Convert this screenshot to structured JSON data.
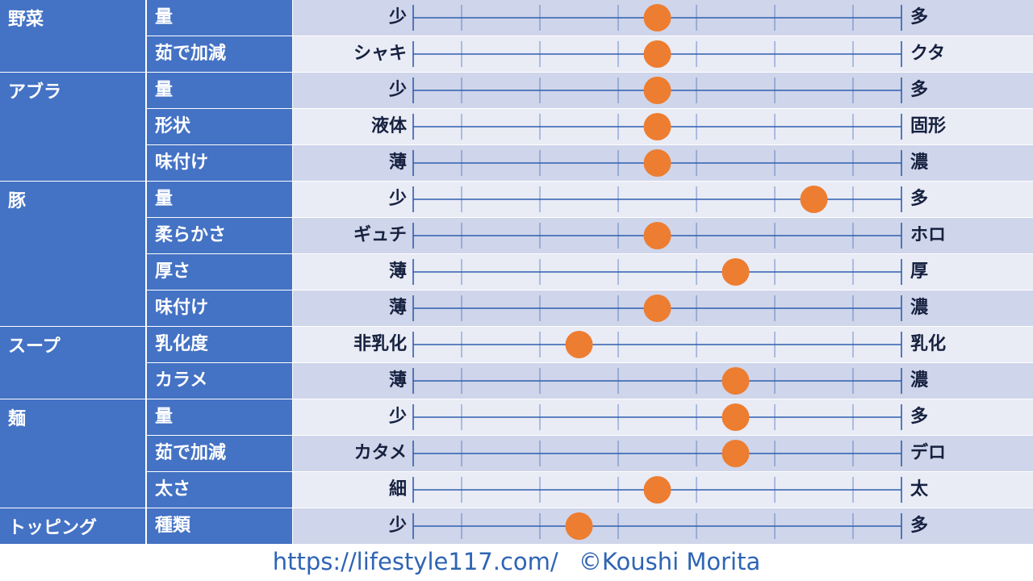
{
  "chart_data": {
    "type": "scatter",
    "scale_positions": 6,
    "categories": [
      {
        "name": "野菜",
        "items": [
          {
            "label": "量",
            "left": "少",
            "right": "多",
            "value": 2.5
          },
          {
            "label": "茹で加減",
            "left": "シャキ",
            "right": "クタ",
            "value": 2.5
          }
        ]
      },
      {
        "name": "アブラ",
        "items": [
          {
            "label": "量",
            "left": "少",
            "right": "多",
            "value": 2.5
          },
          {
            "label": "形状",
            "left": "液体",
            "right": "固形",
            "value": 2.5
          },
          {
            "label": "味付け",
            "left": "薄",
            "right": "濃",
            "value": 2.5
          }
        ]
      },
      {
        "name": "豚",
        "items": [
          {
            "label": "量",
            "left": "少",
            "right": "多",
            "value": 4.5
          },
          {
            "label": "柔らかさ",
            "left": "ギュチ",
            "right": "ホロ",
            "value": 2.5
          },
          {
            "label": "厚さ",
            "left": "薄",
            "right": "厚",
            "value": 3.5
          },
          {
            "label": "味付け",
            "left": "薄",
            "right": "濃",
            "value": 2.5
          }
        ]
      },
      {
        "name": "スープ",
        "items": [
          {
            "label": "乳化度",
            "left": "非乳化",
            "right": "乳化",
            "value": 1.5
          },
          {
            "label": "カラメ",
            "left": "薄",
            "right": "濃",
            "value": 3.5
          }
        ]
      },
      {
        "name": "麺",
        "items": [
          {
            "label": "量",
            "left": "少",
            "right": "多",
            "value": 3.5
          },
          {
            "label": "茹で加減",
            "left": "カタメ",
            "right": "デロ",
            "value": 3.5
          },
          {
            "label": "太さ",
            "left": "細",
            "right": "太",
            "value": 2.5
          }
        ]
      },
      {
        "name": "トッピング",
        "items": [
          {
            "label": "種類",
            "left": "少",
            "right": "多",
            "value": 1.5
          }
        ]
      }
    ]
  },
  "footer": {
    "url": "https://lifestyle117.com/",
    "copyright": "©Koushi Morita"
  },
  "colors": {
    "header_bg": "#4472c4",
    "row_odd": "#cfd5ea",
    "row_even": "#e9ebf5",
    "scale_line": "#2f5fb0",
    "marker": "#ed7d31",
    "footer_text": "#2e64b4"
  }
}
